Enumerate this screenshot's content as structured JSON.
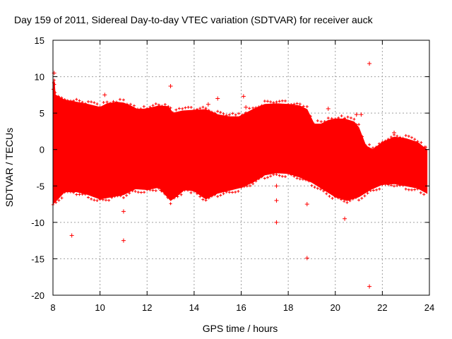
{
  "chart_data": {
    "type": "scatter",
    "title": "Day 159 of 2011, Sidereal Day-to-day VTEC variation (SDTVAR) for receiver auck",
    "xlabel": "GPS time / hours",
    "ylabel": "SDTVAR / TECUs",
    "xlim": [
      8,
      24
    ],
    "ylim": [
      -20,
      15
    ],
    "xticks": [
      8,
      10,
      12,
      14,
      16,
      18,
      20,
      22,
      24
    ],
    "yticks": [
      -20,
      -15,
      -10,
      -5,
      0,
      5,
      10,
      15
    ],
    "grid": true,
    "color": "#ff0000",
    "band_upper": [
      [
        8.0,
        8.2
      ],
      [
        8.05,
        9.5
      ],
      [
        8.1,
        7.5
      ],
      [
        8.5,
        6.8
      ],
      [
        9.0,
        6.5
      ],
      [
        9.5,
        6.2
      ],
      [
        10.0,
        5.8
      ],
      [
        10.3,
        6.3
      ],
      [
        10.7,
        6.5
      ],
      [
        11.0,
        6.4
      ],
      [
        11.3,
        6.0
      ],
      [
        11.6,
        5.5
      ],
      [
        12.0,
        5.6
      ],
      [
        12.5,
        6.0
      ],
      [
        12.9,
        5.9
      ],
      [
        13.1,
        5.0
      ],
      [
        13.5,
        5.3
      ],
      [
        14.0,
        5.4
      ],
      [
        14.5,
        5.5
      ],
      [
        15.0,
        4.8
      ],
      [
        15.5,
        4.5
      ],
      [
        15.9,
        4.5
      ],
      [
        16.2,
        5.0
      ],
      [
        16.5,
        5.5
      ],
      [
        17.0,
        6.2
      ],
      [
        17.5,
        6.3
      ],
      [
        18.0,
        6.2
      ],
      [
        18.5,
        6.0
      ],
      [
        18.8,
        5.5
      ],
      [
        19.1,
        3.5
      ],
      [
        19.4,
        3.5
      ],
      [
        19.7,
        4.0
      ],
      [
        20.0,
        4.2
      ],
      [
        20.4,
        4.2
      ],
      [
        20.8,
        3.8
      ],
      [
        21.0,
        3.0
      ],
      [
        21.3,
        0.5
      ],
      [
        21.6,
        0.0
      ],
      [
        22.0,
        1.0
      ],
      [
        22.5,
        1.7
      ],
      [
        23.0,
        1.5
      ],
      [
        23.5,
        1.0
      ],
      [
        23.8,
        0.2
      ],
      [
        23.9,
        0.0
      ]
    ],
    "band_lower": [
      [
        8.0,
        -7.5
      ],
      [
        8.5,
        -5.8
      ],
      [
        9.0,
        -5.8
      ],
      [
        9.5,
        -6.2
      ],
      [
        10.0,
        -6.8
      ],
      [
        10.5,
        -6.5
      ],
      [
        11.0,
        -6.2
      ],
      [
        11.5,
        -5.4
      ],
      [
        12.0,
        -5.5
      ],
      [
        12.5,
        -5.2
      ],
      [
        13.0,
        -7.0
      ],
      [
        13.3,
        -6.3
      ],
      [
        13.6,
        -5.5
      ],
      [
        14.0,
        -5.7
      ],
      [
        14.5,
        -6.8
      ],
      [
        15.0,
        -6.0
      ],
      [
        15.5,
        -5.6
      ],
      [
        16.0,
        -5.2
      ],
      [
        16.5,
        -4.5
      ],
      [
        17.0,
        -3.5
      ],
      [
        17.5,
        -3.2
      ],
      [
        18.0,
        -3.3
      ],
      [
        18.5,
        -3.8
      ],
      [
        19.0,
        -4.5
      ],
      [
        19.5,
        -5.5
      ],
      [
        20.0,
        -6.5
      ],
      [
        20.5,
        -7.0
      ],
      [
        21.0,
        -6.5
      ],
      [
        21.5,
        -5.5
      ],
      [
        22.0,
        -4.8
      ],
      [
        22.5,
        -4.7
      ],
      [
        23.0,
        -5.0
      ],
      [
        23.5,
        -5.3
      ],
      [
        23.9,
        -6.0
      ]
    ],
    "outliers": [
      [
        8.8,
        -11.8
      ],
      [
        11.0,
        -12.5
      ],
      [
        13.0,
        8.7
      ],
      [
        16.1,
        7.3
      ],
      [
        17.5,
        -10.0
      ],
      [
        18.8,
        -14.9
      ],
      [
        18.8,
        -7.5
      ],
      [
        20.4,
        -9.5
      ],
      [
        21.45,
        11.8
      ],
      [
        21.45,
        -18.8
      ],
      [
        22.5,
        2.3
      ],
      [
        17.5,
        -7.0
      ],
      [
        17.5,
        -5.0
      ],
      [
        11.0,
        -8.5
      ],
      [
        8.05,
        10.5
      ],
      [
        10.2,
        7.5
      ],
      [
        14.6,
        6.2
      ],
      [
        15.0,
        7.0
      ],
      [
        16.2,
        5.8
      ],
      [
        19.7,
        5.6
      ],
      [
        20.9,
        4.8
      ],
      [
        21.1,
        4.8
      ],
      [
        12.6,
        -5.6
      ]
    ]
  }
}
